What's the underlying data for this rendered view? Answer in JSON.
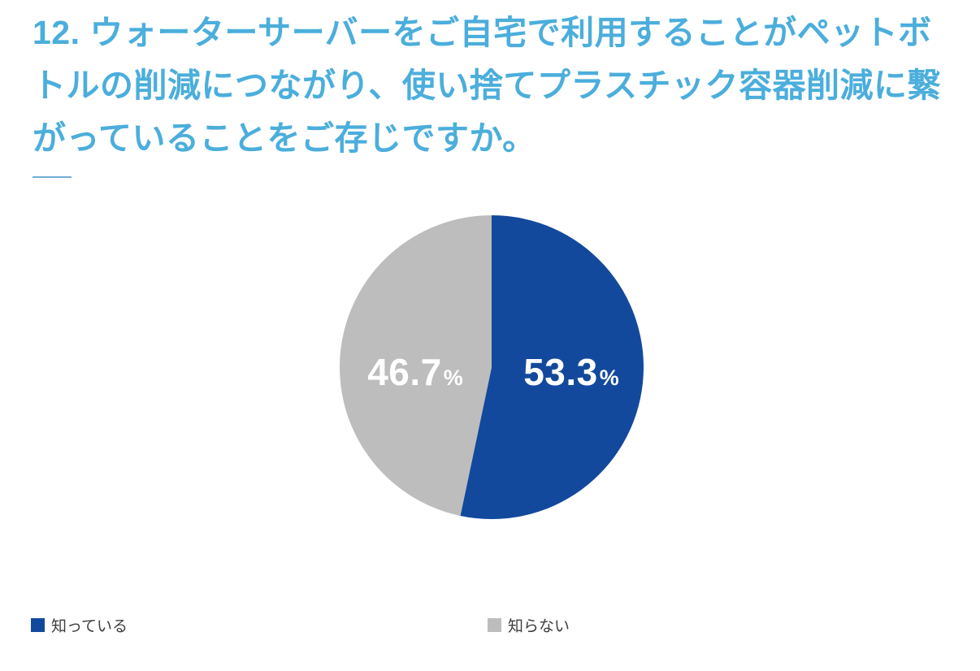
{
  "title": {
    "text": "12. ウォーターサーバーをご自宅で利用することがペットボトルの削減につながり、使い捨てプラスチック容器削減に繋がっていることをご存じですか。"
  },
  "colors": {
    "title": "#4BAEDC",
    "divider": "#6FAFD2",
    "legend_text": "#3D3D3D",
    "label_text": "#FFFFFF",
    "background": "#FFFFFF",
    "blue": "#13499C",
    "gray": "#BDBDBD"
  },
  "chart_data": {
    "type": "pie",
    "title": "",
    "start_angle_deg": 0,
    "direction": "clockwise",
    "legend_position": "bottom",
    "slices": [
      {
        "label": "知っている",
        "value": 53.3,
        "display": "53.3",
        "unit": "%",
        "color": "#13499C"
      },
      {
        "label": "知らない",
        "value": 46.7,
        "display": "46.7",
        "unit": "%",
        "color": "#BDBDBD"
      }
    ]
  },
  "legend": {
    "items": [
      {
        "label": "知っている",
        "color": "#13499C"
      },
      {
        "label": "知らない",
        "color": "#BDBDBD"
      }
    ]
  }
}
